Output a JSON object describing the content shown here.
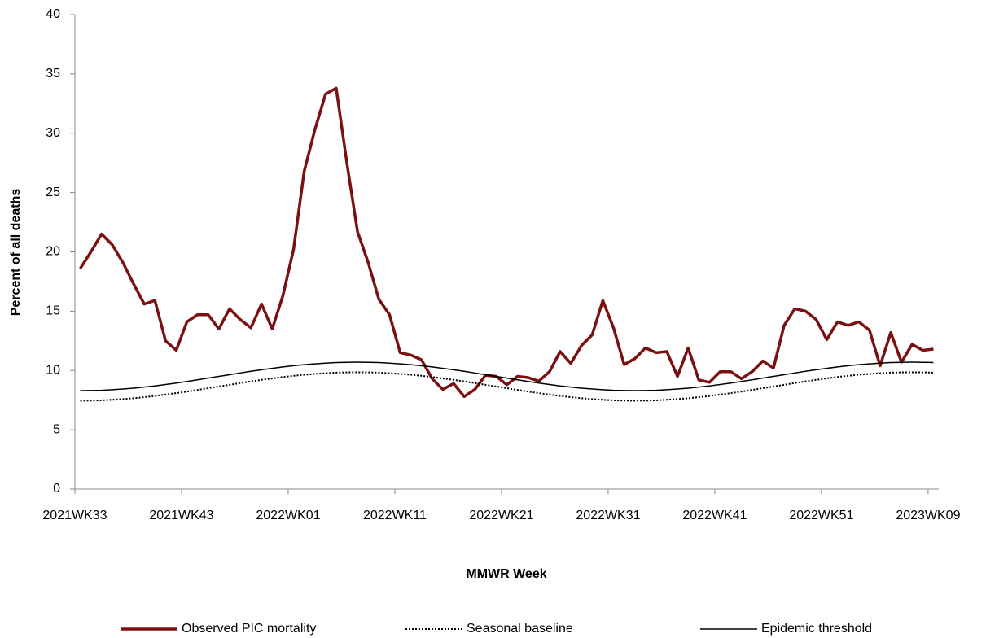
{
  "chart_data": {
    "type": "line",
    "x_label": "MMWR Week",
    "y_label": "Percent of all deaths",
    "categories": [
      "2021WK33",
      null,
      null,
      null,
      null,
      null,
      null,
      null,
      null,
      null,
      "2021WK43",
      null,
      null,
      null,
      null,
      null,
      null,
      null,
      null,
      null,
      "2022WK01",
      null,
      null,
      null,
      null,
      null,
      null,
      null,
      null,
      null,
      "2022WK11",
      null,
      null,
      null,
      null,
      null,
      null,
      null,
      null,
      null,
      "2022WK21",
      null,
      null,
      null,
      null,
      null,
      null,
      null,
      null,
      null,
      "2022WK31",
      null,
      null,
      null,
      null,
      null,
      null,
      null,
      null,
      null,
      "2022WK41",
      null,
      null,
      null,
      null,
      null,
      null,
      null,
      null,
      null,
      "2022WK51",
      null,
      null,
      null,
      null,
      null,
      null,
      null,
      null,
      null,
      "2023WK09"
    ],
    "series": [
      {
        "name": "Observed PIC mortality",
        "color": "#7b1010",
        "dash": "solid",
        "values": [
          18.6,
          20.0,
          21.5,
          20.6,
          19.1,
          17.3,
          15.6,
          15.9,
          12.5,
          11.7,
          14.1,
          14.7,
          14.7,
          13.5,
          15.2,
          14.3,
          13.6,
          15.6,
          13.5,
          16.3,
          20.2,
          26.8,
          30.3,
          33.3,
          33.8,
          27.5,
          21.7,
          19.1,
          16.0,
          14.7,
          11.5,
          11.3,
          10.9,
          9.3,
          8.4,
          8.9,
          7.8,
          8.4,
          9.6,
          9.5,
          8.8,
          9.5,
          9.4,
          9.1,
          9.9,
          11.6,
          10.6,
          12.1,
          13.0,
          15.9,
          13.6,
          10.5,
          11.0,
          11.9,
          11.5,
          11.6,
          9.5,
          11.9,
          9.2,
          9.0,
          9.9,
          9.9,
          9.3,
          9.9,
          10.8,
          10.2,
          13.8,
          15.2,
          15.0,
          14.3,
          12.6,
          14.1,
          13.8,
          14.1,
          13.4,
          10.4,
          13.2,
          10.7,
          12.2,
          11.7,
          11.8
        ]
      },
      {
        "name": "Seasonal baseline",
        "color": "#000000",
        "dash": "dotted",
        "values": [
          7.45,
          7.46,
          7.48,
          7.53,
          7.59,
          7.66,
          7.75,
          7.85,
          7.97,
          8.09,
          8.22,
          8.36,
          8.51,
          8.65,
          8.79,
          8.94,
          9.08,
          9.21,
          9.33,
          9.45,
          9.55,
          9.64,
          9.71,
          9.77,
          9.82,
          9.84,
          9.85,
          9.84,
          9.82,
          9.77,
          9.71,
          9.64,
          9.55,
          9.45,
          9.33,
          9.21,
          9.08,
          8.94,
          8.79,
          8.65,
          8.51,
          8.36,
          8.22,
          8.09,
          7.97,
          7.85,
          7.75,
          7.66,
          7.59,
          7.53,
          7.48,
          7.46,
          7.45,
          7.46,
          7.48,
          7.53,
          7.59,
          7.66,
          7.75,
          7.85,
          7.97,
          8.09,
          8.22,
          8.36,
          8.51,
          8.65,
          8.79,
          8.94,
          9.08,
          9.21,
          9.33,
          9.45,
          9.55,
          9.64,
          9.71,
          9.77,
          9.82,
          9.84,
          9.85,
          9.84,
          9.82
        ]
      },
      {
        "name": "Epidemic threshold",
        "color": "#000000",
        "dash": "solid",
        "values": [
          8.3,
          8.31,
          8.33,
          8.38,
          8.44,
          8.51,
          8.6,
          8.7,
          8.82,
          8.94,
          9.07,
          9.21,
          9.36,
          9.5,
          9.64,
          9.79,
          9.93,
          10.06,
          10.18,
          10.3,
          10.4,
          10.49,
          10.56,
          10.62,
          10.67,
          10.69,
          10.7,
          10.69,
          10.67,
          10.62,
          10.56,
          10.49,
          10.4,
          10.3,
          10.18,
          10.06,
          9.93,
          9.79,
          9.64,
          9.5,
          9.36,
          9.21,
          9.07,
          8.94,
          8.82,
          8.7,
          8.6,
          8.51,
          8.44,
          8.38,
          8.33,
          8.31,
          8.3,
          8.31,
          8.33,
          8.38,
          8.44,
          8.51,
          8.6,
          8.7,
          8.82,
          8.94,
          9.07,
          9.21,
          9.36,
          9.5,
          9.64,
          9.79,
          9.93,
          10.06,
          10.18,
          10.3,
          10.4,
          10.49,
          10.56,
          10.62,
          10.67,
          10.69,
          10.7,
          10.69,
          10.67
        ]
      }
    ],
    "ylim": [
      0,
      40
    ],
    "yticks": [
      0,
      5,
      10,
      15,
      20,
      25,
      30,
      35,
      40
    ],
    "grid": false,
    "legend": "bottom"
  }
}
